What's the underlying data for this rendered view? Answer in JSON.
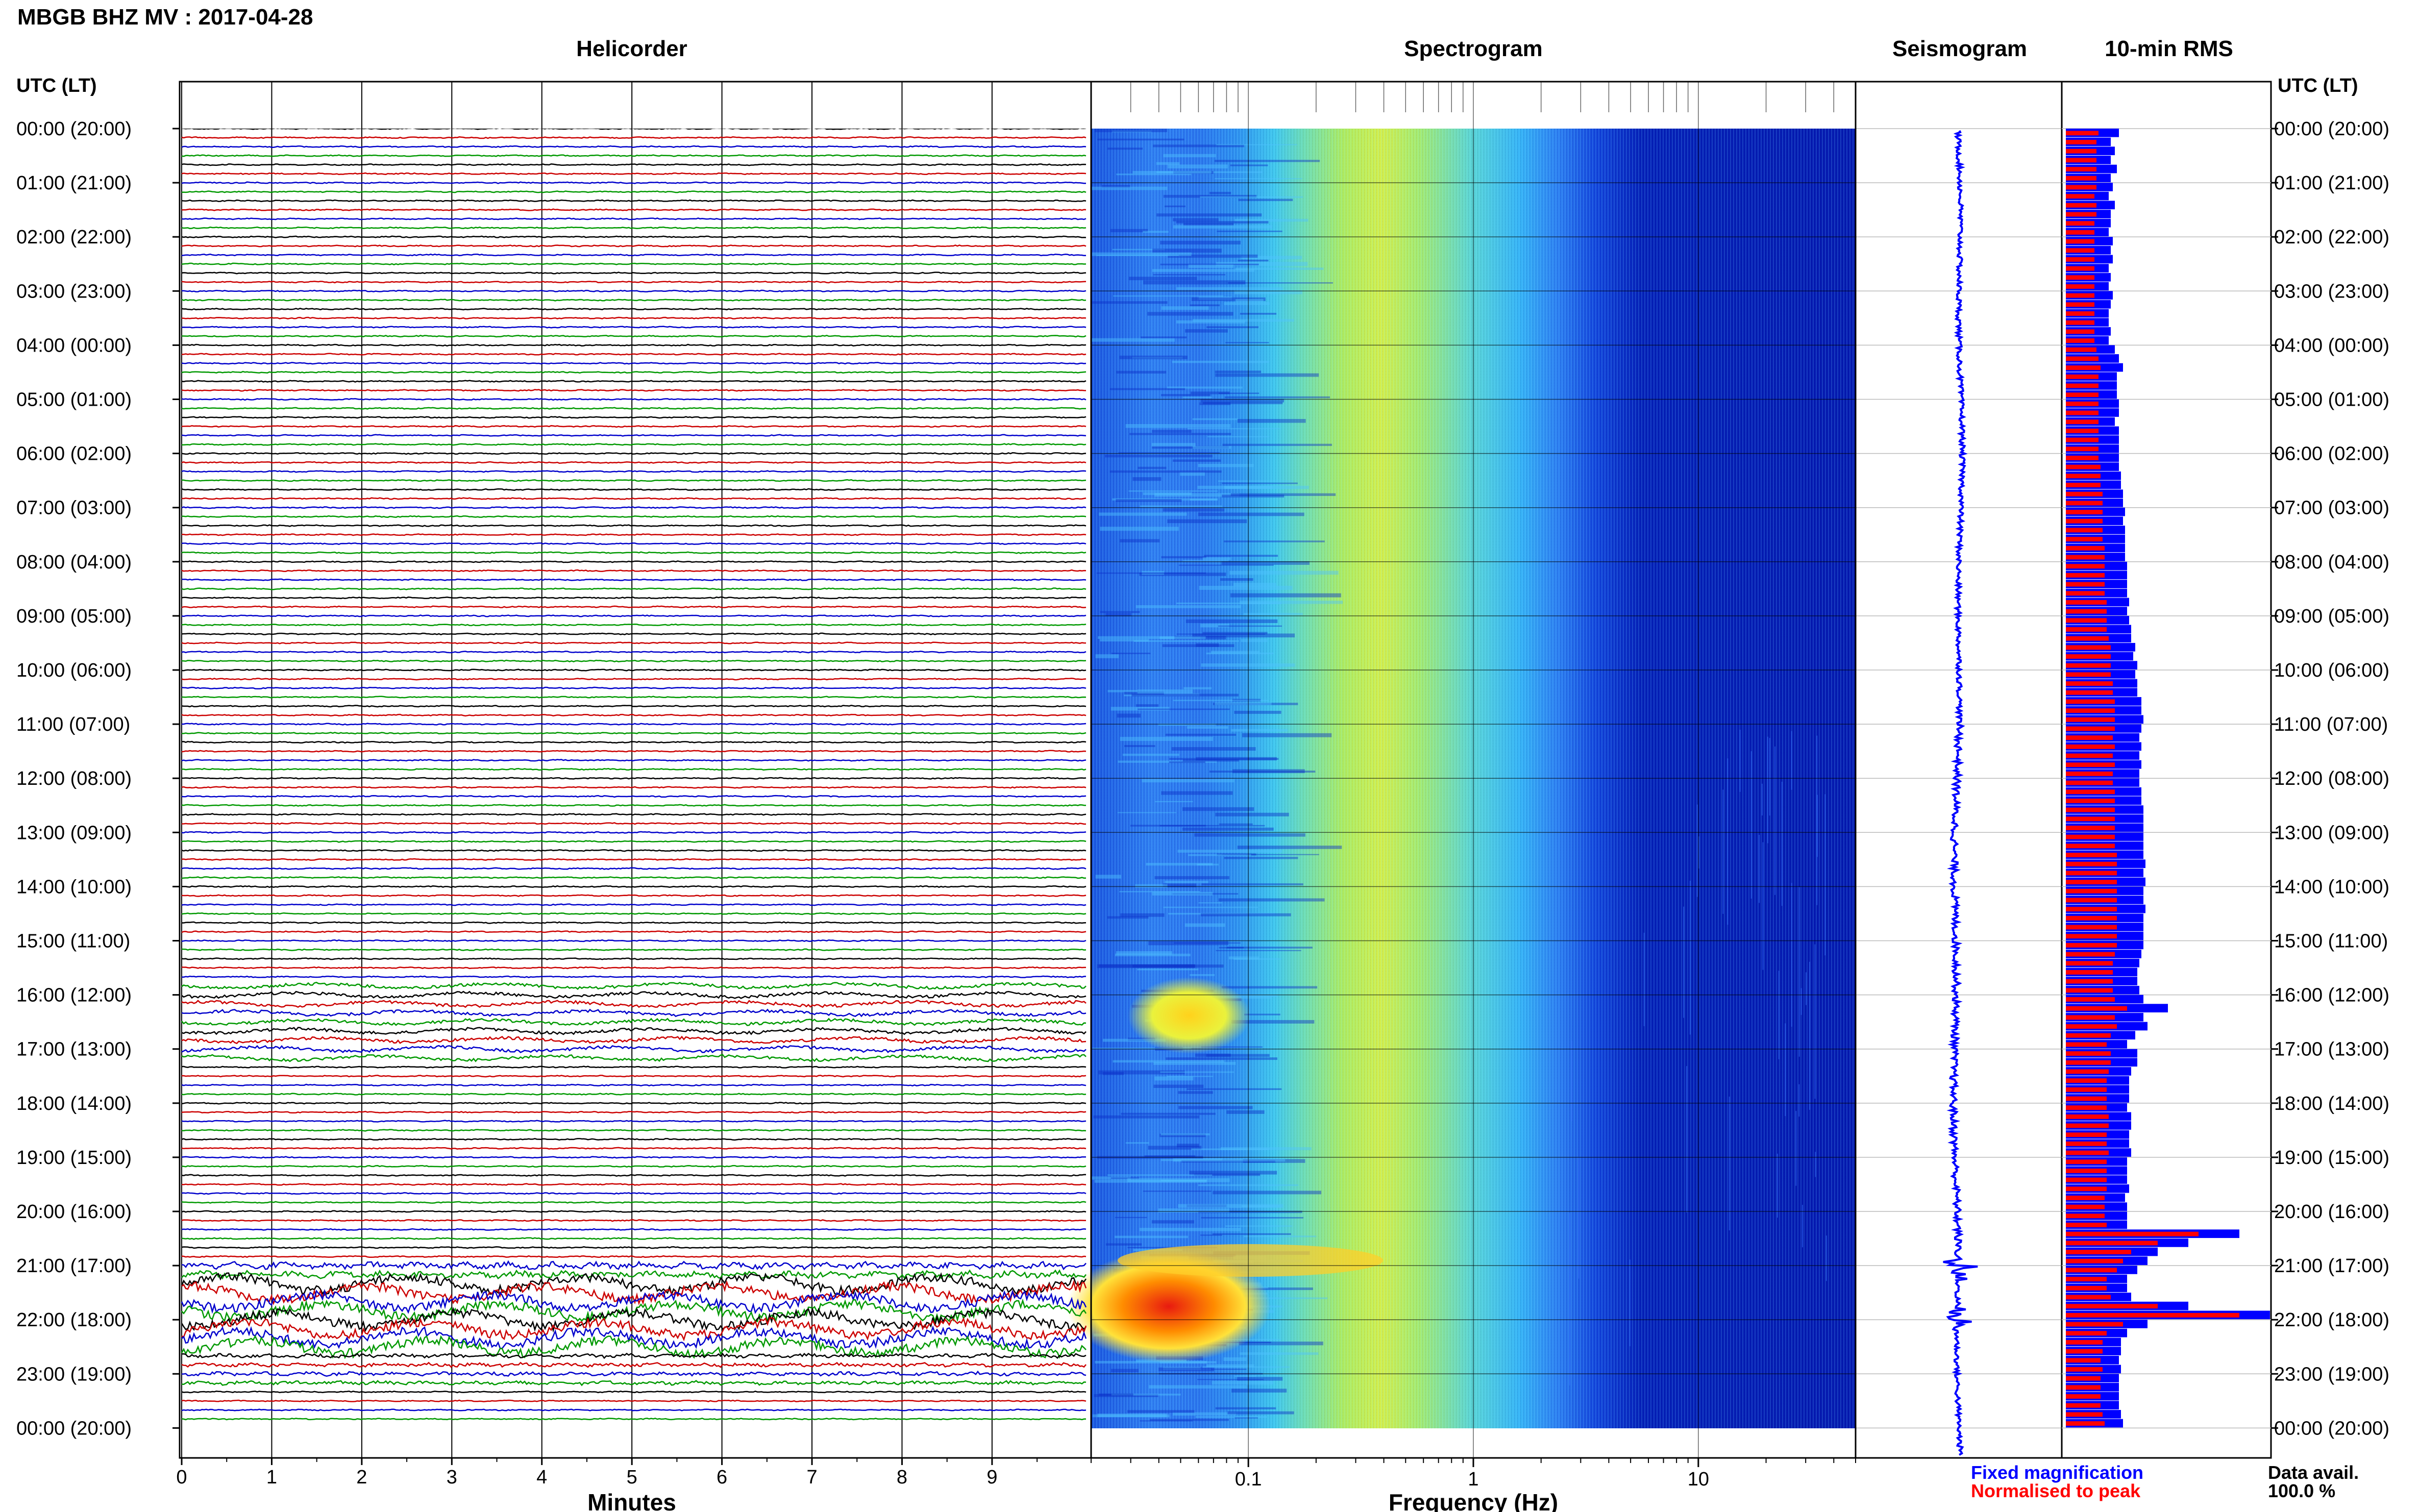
{
  "station_title": "MBGB BHZ MV : 2017-04-28",
  "panels": {
    "helicorder": "Helicorder",
    "spectrogram": "Spectrogram",
    "seismogram": "Seismogram",
    "rms": "10-min RMS"
  },
  "time_axis_header": "UTC (LT)",
  "hour_labels": [
    "00:00 (20:00)",
    "01:00 (21:00)",
    "02:00 (22:00)",
    "03:00 (23:00)",
    "04:00 (00:00)",
    "05:00 (01:00)",
    "06:00 (02:00)",
    "07:00 (03:00)",
    "08:00 (04:00)",
    "09:00 (05:00)",
    "10:00 (06:00)",
    "11:00 (07:00)",
    "12:00 (08:00)",
    "13:00 (09:00)",
    "14:00 (10:00)",
    "15:00 (11:00)",
    "16:00 (12:00)",
    "17:00 (13:00)",
    "18:00 (14:00)",
    "19:00 (15:00)",
    "20:00 (16:00)",
    "21:00 (17:00)",
    "22:00 (18:00)",
    "23:00 (19:00)",
    "00:00 (20:00)"
  ],
  "x_axes": {
    "helicorder_label": "Minutes",
    "helicorder_ticks": [
      "0",
      "1",
      "2",
      "3",
      "4",
      "5",
      "6",
      "7",
      "8",
      "9"
    ],
    "spectrogram_label": "Frequency (Hz)",
    "spectrogram_ticks": [
      "0.1",
      "1",
      "10"
    ]
  },
  "legend": {
    "fixed": "Fixed magnification",
    "normalised": "Normalised to peak",
    "fixed_color": "#0000ff",
    "normalised_color": "#ff0000"
  },
  "data_avail": {
    "label": "Data avail.",
    "value": "100.0 %"
  },
  "colors": {
    "trace_cycle": [
      "#000000",
      "#cc0000",
      "#0000cc",
      "#009900"
    ],
    "spectrogram_low": "#0000a0",
    "spectrogram_high": "#ff0000"
  },
  "chart_data": [
    {
      "type": "line",
      "title": "Helicorder",
      "xlabel": "Minutes",
      "xlim": [
        0,
        10
      ],
      "rows_per_hour": 6,
      "total_rows": 144,
      "row_minutes": 10,
      "notes": "strong long-period oscillations 21:00-22:30 UTC, moderate ~16:00 UTC"
    },
    {
      "type": "heatmap",
      "title": "Spectrogram",
      "xlabel": "Frequency (Hz)",
      "xscale": "log",
      "xlim": [
        0.02,
        50
      ],
      "ylim_hours": [
        0,
        24
      ],
      "peak_energy_hz": [
        0.25,
        0.5
      ],
      "high_energy_events_utc": [
        "16:00",
        "21:00-22:30"
      ]
    },
    {
      "type": "line",
      "title": "Seismogram",
      "peak_times_utc": [
        "21:00",
        "22:00"
      ]
    },
    {
      "type": "bar",
      "title": "10-min RMS",
      "orientation": "horizontal",
      "interval_minutes": 10,
      "series": [
        {
          "name": "Fixed magnification",
          "values": [
            0.26,
            0.22,
            0.24,
            0.22,
            0.25,
            0.22,
            0.23,
            0.21,
            0.24,
            0.22,
            0.22,
            0.21,
            0.23,
            0.22,
            0.23,
            0.21,
            0.22,
            0.21,
            0.23,
            0.22,
            0.21,
            0.21,
            0.22,
            0.21,
            0.24,
            0.26,
            0.28,
            0.25,
            0.25,
            0.25,
            0.26,
            0.26,
            0.24,
            0.26,
            0.26,
            0.26,
            0.26,
            0.26,
            0.27,
            0.27,
            0.28,
            0.28,
            0.29,
            0.28,
            0.29,
            0.29,
            0.29,
            0.29,
            0.3,
            0.3,
            0.3,
            0.3,
            0.31,
            0.3,
            0.31,
            0.32,
            0.32,
            0.34,
            0.33,
            0.35,
            0.34,
            0.35,
            0.35,
            0.37,
            0.37,
            0.38,
            0.37,
            0.36,
            0.37,
            0.36,
            0.37,
            0.36,
            0.36,
            0.37,
            0.37,
            0.38,
            0.38,
            0.38,
            0.38,
            0.38,
            0.38,
            0.39,
            0.38,
            0.39,
            0.38,
            0.38,
            0.39,
            0.38,
            0.38,
            0.38,
            0.38,
            0.37,
            0.36,
            0.35,
            0.35,
            0.36,
            0.38,
            0.5,
            0.38,
            0.4,
            0.34,
            0.3,
            0.35,
            0.35,
            0.32,
            0.31,
            0.31,
            0.31,
            0.3,
            0.32,
            0.32,
            0.31,
            0.31,
            0.32,
            0.3,
            0.3,
            0.3,
            0.31,
            0.29,
            0.3,
            0.3,
            0.3,
            0.85,
            0.6,
            0.45,
            0.4,
            0.35,
            0.3,
            0.3,
            0.32,
            0.6,
            1.0,
            0.4,
            0.3,
            0.27,
            0.27,
            0.26,
            0.27,
            0.26,
            0.26,
            0.26,
            0.26,
            0.27,
            0.28
          ]
        },
        {
          "name": "Normalised to peak",
          "values": [
            0.16,
            0.15,
            0.15,
            0.15,
            0.15,
            0.15,
            0.15,
            0.14,
            0.15,
            0.15,
            0.14,
            0.14,
            0.14,
            0.14,
            0.14,
            0.14,
            0.14,
            0.14,
            0.14,
            0.14,
            0.14,
            0.14,
            0.14,
            0.14,
            0.15,
            0.16,
            0.17,
            0.16,
            0.16,
            0.16,
            0.16,
            0.16,
            0.16,
            0.16,
            0.16,
            0.16,
            0.16,
            0.17,
            0.17,
            0.17,
            0.18,
            0.18,
            0.18,
            0.18,
            0.18,
            0.18,
            0.19,
            0.19,
            0.19,
            0.19,
            0.19,
            0.19,
            0.2,
            0.2,
            0.2,
            0.2,
            0.21,
            0.22,
            0.22,
            0.22,
            0.22,
            0.23,
            0.23,
            0.24,
            0.24,
            0.24,
            0.24,
            0.23,
            0.24,
            0.23,
            0.24,
            0.23,
            0.23,
            0.24,
            0.24,
            0.24,
            0.24,
            0.24,
            0.24,
            0.24,
            0.25,
            0.25,
            0.25,
            0.25,
            0.25,
            0.25,
            0.25,
            0.25,
            0.25,
            0.25,
            0.25,
            0.24,
            0.23,
            0.23,
            0.23,
            0.23,
            0.24,
            0.3,
            0.24,
            0.25,
            0.22,
            0.2,
            0.22,
            0.22,
            0.21,
            0.2,
            0.2,
            0.2,
            0.2,
            0.21,
            0.21,
            0.2,
            0.2,
            0.21,
            0.2,
            0.2,
            0.2,
            0.2,
            0.19,
            0.19,
            0.19,
            0.2,
            0.65,
            0.45,
            0.32,
            0.28,
            0.25,
            0.2,
            0.2,
            0.22,
            0.45,
            0.85,
            0.28,
            0.2,
            0.18,
            0.18,
            0.17,
            0.18,
            0.17,
            0.17,
            0.17,
            0.17,
            0.18,
            0.19
          ]
        }
      ]
    }
  ]
}
